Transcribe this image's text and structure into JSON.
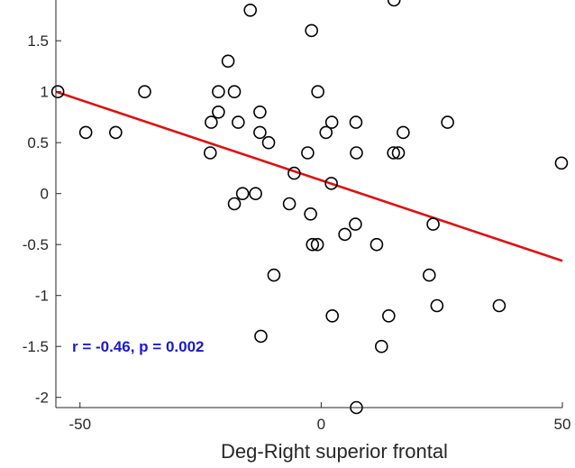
{
  "chart_data": {
    "type": "scatter",
    "title": "",
    "xlabel": "Deg-Right superior frontal",
    "ylabel": "",
    "xlim": [
      -55,
      50
    ],
    "ylim": [
      -2.1,
      1.9
    ],
    "x_ticks": [
      -50,
      0,
      50
    ],
    "x_tick_labels": [
      "-50",
      "0",
      "50"
    ],
    "y_ticks": [
      -2,
      -1.5,
      -1,
      -0.5,
      0,
      0.5,
      1,
      1.5
    ],
    "y_tick_labels": [
      "-2",
      "-1.5",
      "-1",
      "-0.5",
      "0",
      "0.5",
      "1",
      "1.5"
    ],
    "grid": false,
    "annotation": "r = -0.46, p = 0.002",
    "annotation_color": "#1a1acc",
    "marker_color": "#000000",
    "fit_line_color": "#e01010",
    "fit_line": {
      "x": [
        -55,
        50
      ],
      "y": [
        1.0,
        -0.66
      ]
    },
    "points": [
      {
        "x": -54.6,
        "y": 1.0
      },
      {
        "x": -48.8,
        "y": 0.6
      },
      {
        "x": -42.6,
        "y": 0.6
      },
      {
        "x": -36.6,
        "y": 1.0
      },
      {
        "x": -23.0,
        "y": 0.4
      },
      {
        "x": -22.8,
        "y": 0.7
      },
      {
        "x": -21.3,
        "y": 0.8
      },
      {
        "x": -21.3,
        "y": 1.0
      },
      {
        "x": -19.3,
        "y": 1.3
      },
      {
        "x": -18.0,
        "y": -0.1
      },
      {
        "x": -18.0,
        "y": 1.0
      },
      {
        "x": -17.2,
        "y": 0.7
      },
      {
        "x": -16.3,
        "y": 0.0
      },
      {
        "x": -14.7,
        "y": 1.8
      },
      {
        "x": -13.6,
        "y": 0.0
      },
      {
        "x": -12.7,
        "y": 0.8
      },
      {
        "x": -12.7,
        "y": 0.6
      },
      {
        "x": -12.5,
        "y": -1.4
      },
      {
        "x": -10.9,
        "y": 0.5
      },
      {
        "x": -9.8,
        "y": -0.8
      },
      {
        "x": -6.6,
        "y": -0.1
      },
      {
        "x": -5.6,
        "y": 0.2
      },
      {
        "x": -2.8,
        "y": 0.4
      },
      {
        "x": -2.2,
        "y": -0.2
      },
      {
        "x": -2.0,
        "y": 1.6
      },
      {
        "x": -1.8,
        "y": -0.5
      },
      {
        "x": -0.8,
        "y": -0.5
      },
      {
        "x": -0.7,
        "y": 1.0
      },
      {
        "x": 1.0,
        "y": 0.6
      },
      {
        "x": 2.1,
        "y": 0.1
      },
      {
        "x": 2.2,
        "y": 0.7
      },
      {
        "x": 2.3,
        "y": -1.2
      },
      {
        "x": 4.9,
        "y": -0.4
      },
      {
        "x": 7.1,
        "y": -0.3
      },
      {
        "x": 7.2,
        "y": 0.7
      },
      {
        "x": 7.3,
        "y": -2.1
      },
      {
        "x": 7.3,
        "y": 0.4
      },
      {
        "x": 11.5,
        "y": -0.5
      },
      {
        "x": 12.5,
        "y": -1.5
      },
      {
        "x": 14.0,
        "y": -1.2
      },
      {
        "x": 15.0,
        "y": 0.4
      },
      {
        "x": 15.1,
        "y": 1.9
      },
      {
        "x": 16.0,
        "y": 0.4
      },
      {
        "x": 17.0,
        "y": 0.6
      },
      {
        "x": 22.4,
        "y": -0.8
      },
      {
        "x": 23.2,
        "y": -0.3
      },
      {
        "x": 24.0,
        "y": -1.1
      },
      {
        "x": 26.2,
        "y": 0.7
      },
      {
        "x": 36.9,
        "y": -1.1
      },
      {
        "x": 49.8,
        "y": 0.3
      }
    ]
  }
}
